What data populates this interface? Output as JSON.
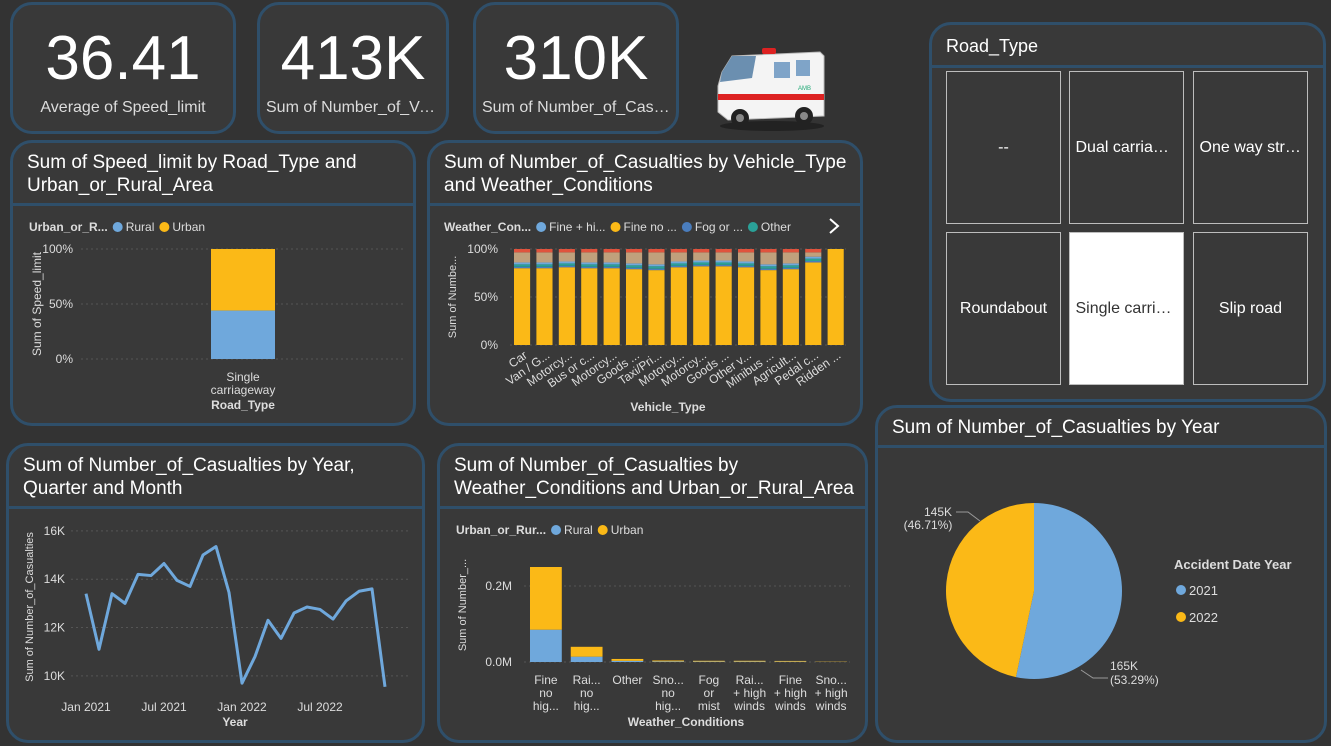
{
  "colors": {
    "bg": "#333333",
    "card": "#393939",
    "border": "#2f4f6a",
    "rural": "#6fa8dc",
    "urban": "#fbb917",
    "tan": "#c0a07c",
    "teal": "#2aa198",
    "blue": "#4a7dbd",
    "red": "#e0533d"
  },
  "kpis": [
    {
      "value": "36.41",
      "label": "Average of Speed_limit"
    },
    {
      "value": "413K",
      "label": "Sum of Number_of_Vehicles"
    },
    {
      "value": "310K",
      "label": "Sum of Number_of_Casualties"
    }
  ],
  "ambulance": {
    "icon": "ambulance-icon"
  },
  "chart1": {
    "title": "Sum of Speed_limit by Road_Type and Urban_or_Rural_Area",
    "legend_title": "Urban_or_R...",
    "legend": [
      "Rural",
      "Urban"
    ],
    "y_ticks": [
      "100%",
      "50%",
      "0%"
    ],
    "ylabel": "Sum of Speed_limit",
    "xlabel": "Road_Type",
    "category": "Single carriageway",
    "category_lines": [
      "Single",
      "carriageway"
    ]
  },
  "chart2": {
    "title": "Sum of Number_of_Casualties by Vehicle_Type and Weather_Conditions",
    "legend_title": "Weather_Con...",
    "legend": [
      "Fine + hi...",
      "Fine no ...",
      "Fog or ...",
      "Other"
    ],
    "y_ticks": [
      "100%",
      "50%",
      "0%"
    ],
    "ylabel": "Sum of Numbe...",
    "xlabel": "Vehicle_Type",
    "categories": [
      "Car",
      "Van / G...",
      "Motorcy...",
      "Bus or c...",
      "Motorcy...",
      "Goods ...",
      "Taxi/Pri...",
      "Motorcy...",
      "Motorcy...",
      "Goods ...",
      "Other v...",
      "Minibus ...",
      "Agricult...",
      "Pedal c...",
      "Ridden ..."
    ],
    "urban_share": [
      0.8,
      0.8,
      0.81,
      0.8,
      0.8,
      0.79,
      0.78,
      0.81,
      0.82,
      0.82,
      0.81,
      0.78,
      0.79,
      0.86,
      1.0
    ]
  },
  "road_type_slicer": {
    "title": "Road_Type",
    "items": [
      {
        "label": "--",
        "selected": false
      },
      {
        "label": "Dual carriageway",
        "selected": false
      },
      {
        "label": "One way street",
        "selected": false
      },
      {
        "label": "Roundabout",
        "selected": false
      },
      {
        "label": "Single carriageway",
        "selected": true
      },
      {
        "label": "Slip road",
        "selected": false
      }
    ]
  },
  "chart3": {
    "title": "Sum of Number_of_Casualties by Year, Quarter and Month",
    "y_ticks": [
      "16K",
      "14K",
      "12K",
      "10K"
    ],
    "ylabel": "Sum of Number_of_Casualties",
    "x_ticks": [
      "Jan 2021",
      "Jul 2021",
      "Jan 2022",
      "Jul 2022"
    ],
    "xlabel": "Year",
    "values": [
      13400,
      11100,
      13400,
      13000,
      14200,
      14150,
      14650,
      13950,
      13700,
      15000,
      15350,
      13450,
      9700,
      10800,
      12300,
      11550,
      12600,
      12850,
      12750,
      12350,
      13100,
      13500,
      13600,
      9550
    ],
    "ylim": [
      9500,
      16200
    ]
  },
  "chart4": {
    "title": "Sum of Number_of_Casualties by Weather_Conditions and Urban_or_Rural_Area",
    "legend_title": "Urban_or_Rur...",
    "legend": [
      "Rural",
      "Urban"
    ],
    "y_ticks": [
      "0.2M",
      "0.0M"
    ],
    "ylabel": "Sum of Number_...",
    "xlabel": "Weather_Conditions",
    "categories": [
      {
        "lines": [
          "Fine",
          "no",
          "hig..."
        ]
      },
      {
        "lines": [
          "Rai...",
          "no",
          "hig..."
        ]
      },
      {
        "lines": [
          "Other"
        ]
      },
      {
        "lines": [
          "Sno...",
          "no",
          "hig..."
        ]
      },
      {
        "lines": [
          "Fog",
          "or",
          "mist"
        ]
      },
      {
        "lines": [
          "Rai...",
          "+ high",
          "winds"
        ]
      },
      {
        "lines": [
          "Fine",
          "+ high",
          "winds"
        ]
      },
      {
        "lines": [
          "Sno...",
          "+ high",
          "winds"
        ]
      }
    ],
    "rural": [
      85000,
      14000,
      3000,
      1500,
      1200,
      1200,
      1000,
      300
    ],
    "urban": [
      165000,
      26000,
      5000,
      2500,
      2000,
      2000,
      1800,
      700
    ]
  },
  "chart5": {
    "title": "Sum of Number_of_Casualties by Year",
    "legend_title": "Accident Date Year",
    "legend": [
      "2021",
      "2022"
    ],
    "slices": [
      {
        "year": "2021",
        "value_label": "165K",
        "pct_label": "(53.29%)",
        "share": 0.5329
      },
      {
        "year": "2022",
        "value_label": "145K",
        "pct_label": "(46.71%)",
        "share": 0.4671
      }
    ]
  }
}
